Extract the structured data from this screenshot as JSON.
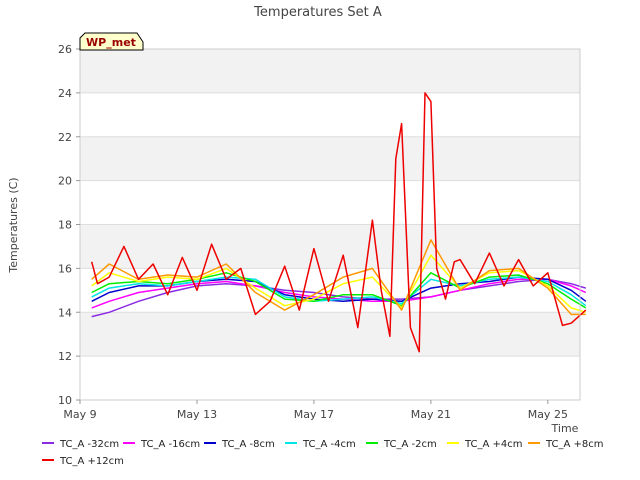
{
  "chart_data": {
    "type": "line",
    "title": "Temperatures Set A",
    "xlabel": "Time",
    "ylabel": "Temperatures (C)",
    "ylim": [
      10,
      26
    ],
    "yticks": [
      10,
      12,
      14,
      16,
      18,
      20,
      22,
      24,
      26
    ],
    "xlim": [
      9,
      26.1
    ],
    "xticks": [
      {
        "x": 9,
        "label": "May 9"
      },
      {
        "x": 13,
        "label": "May 13"
      },
      {
        "x": 17,
        "label": "May 17"
      },
      {
        "x": 21,
        "label": "May 21"
      },
      {
        "x": 25,
        "label": "May 25"
      }
    ],
    "grid": "horizontal bands",
    "badge": "WP_met",
    "legend_position": "bottom",
    "series": [
      {
        "name": "TC_A -32cm",
        "color": "#8a2be2",
        "x": [
          9.4,
          10,
          11,
          12,
          13,
          14,
          15,
          16,
          17,
          18,
          19,
          20,
          21,
          22,
          23,
          24,
          25,
          25.8,
          26.3
        ],
        "values": [
          13.8,
          14.0,
          14.5,
          14.9,
          15.2,
          15.3,
          15.2,
          15.0,
          14.9,
          14.7,
          14.6,
          14.6,
          14.7,
          15.0,
          15.2,
          15.4,
          15.5,
          15.3,
          15.1
        ]
      },
      {
        "name": "TC_A -16cm",
        "color": "#ff00ff",
        "x": [
          9.4,
          10,
          11,
          12,
          13,
          14,
          15,
          16,
          17,
          18,
          19,
          20,
          21,
          22,
          23,
          24,
          25,
          25.8,
          26.3
        ],
        "values": [
          14.2,
          14.5,
          14.9,
          15.1,
          15.3,
          15.4,
          15.2,
          14.9,
          14.7,
          14.6,
          14.5,
          14.5,
          14.7,
          15.0,
          15.3,
          15.5,
          15.5,
          15.2,
          14.9
        ]
      },
      {
        "name": "TC_A -8cm",
        "color": "#0000cc",
        "x": [
          9.4,
          10,
          11,
          12,
          13,
          14,
          15,
          16,
          17,
          18,
          19,
          20,
          21,
          22,
          23,
          24,
          25,
          25.8,
          26.3
        ],
        "values": [
          14.5,
          14.9,
          15.2,
          15.2,
          15.4,
          15.5,
          15.4,
          14.8,
          14.6,
          14.5,
          14.6,
          14.5,
          15.1,
          15.3,
          15.4,
          15.6,
          15.5,
          15.0,
          14.5
        ]
      },
      {
        "name": "TC_A -4cm",
        "color": "#00e5e5",
        "x": [
          9.4,
          10,
          11,
          12,
          13,
          14,
          15,
          16,
          17,
          18,
          19,
          20,
          21,
          22,
          23,
          24,
          25,
          25.8,
          26.3
        ],
        "values": [
          14.7,
          15.1,
          15.3,
          15.2,
          15.4,
          15.6,
          15.5,
          14.7,
          14.5,
          14.6,
          14.7,
          14.4,
          15.5,
          15.2,
          15.5,
          15.6,
          15.4,
          14.8,
          14.3
        ]
      },
      {
        "name": "TC_A -2cm",
        "color": "#00ee00",
        "x": [
          9.4,
          10,
          11,
          12,
          13,
          14,
          15,
          16,
          17,
          18,
          19,
          20,
          21,
          22,
          23,
          24,
          25,
          25.8,
          26.3
        ],
        "values": [
          14.9,
          15.3,
          15.4,
          15.3,
          15.5,
          15.8,
          15.4,
          14.6,
          14.5,
          14.8,
          14.8,
          14.3,
          15.8,
          15.1,
          15.6,
          15.7,
          15.3,
          14.6,
          14.2
        ]
      },
      {
        "name": "TC_A +4cm",
        "color": "#ffff00",
        "x": [
          9.4,
          10,
          11,
          12,
          13,
          14,
          15,
          16,
          17,
          18,
          19,
          20,
          21,
          22,
          23,
          24,
          25,
          25.8,
          26.3
        ],
        "values": [
          15.2,
          15.8,
          15.4,
          15.6,
          15.5,
          16.0,
          15.1,
          14.3,
          14.6,
          15.3,
          15.6,
          14.2,
          16.6,
          15.1,
          15.8,
          15.9,
          15.2,
          14.2,
          14.0
        ]
      },
      {
        "name": "TC_A +8cm",
        "color": "#ff9900",
        "x": [
          9.4,
          10,
          11,
          12,
          13,
          14,
          15,
          16,
          17,
          18,
          19,
          20,
          21,
          22,
          23,
          24,
          25,
          25.8,
          26.3
        ],
        "values": [
          15.5,
          16.2,
          15.5,
          15.7,
          15.6,
          16.2,
          14.9,
          14.1,
          14.8,
          15.6,
          16.0,
          14.1,
          17.3,
          15.0,
          15.9,
          16.0,
          15.1,
          13.9,
          13.9
        ]
      },
      {
        "name": "TC_A +12cm",
        "color": "#ee0000",
        "x": [
          9.4,
          9.6,
          10,
          10.5,
          11,
          11.5,
          12,
          12.5,
          13,
          13.5,
          14,
          14.5,
          15,
          15.5,
          16,
          16.5,
          17,
          17.5,
          18,
          18.5,
          19,
          19.3,
          19.6,
          19.8,
          20,
          20.3,
          20.6,
          20.8,
          21,
          21.2,
          21.5,
          21.8,
          22,
          22.5,
          23,
          23.5,
          24,
          24.5,
          25,
          25.5,
          25.8,
          26.3
        ],
        "values": [
          16.3,
          15.3,
          15.6,
          17.0,
          15.5,
          16.2,
          14.8,
          16.5,
          15.0,
          17.1,
          15.5,
          16.0,
          13.9,
          14.5,
          16.1,
          14.1,
          16.9,
          14.5,
          16.6,
          13.3,
          18.2,
          15.0,
          12.9,
          21.0,
          22.6,
          13.3,
          12.2,
          24.0,
          23.6,
          16.0,
          14.6,
          16.3,
          16.4,
          15.3,
          16.7,
          15.2,
          16.4,
          15.2,
          15.8,
          13.4,
          13.5,
          14.1
        ]
      }
    ]
  }
}
